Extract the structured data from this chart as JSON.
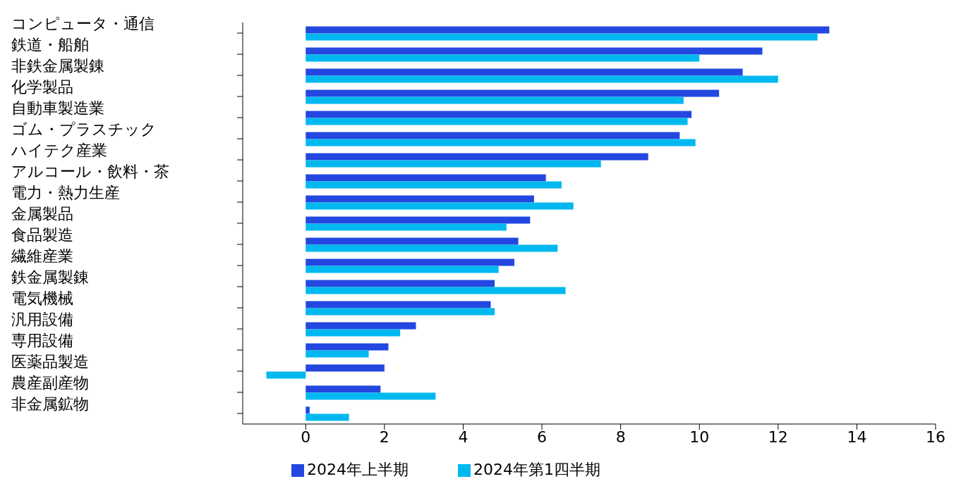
{
  "chart_data": {
    "type": "bar",
    "orientation": "horizontal",
    "categories": [
      "コンピュータ・通信",
      "鉄道・船舶",
      "非鉄金属製錬",
      "化学製品",
      "自動車製造業",
      "ゴム・プラスチック",
      "ハイテク産業",
      "アルコール・飲料・茶",
      "電力・熱力生産",
      "金属製品",
      "食品製造",
      "繊維産業",
      "鉄金属製錬",
      "電気機械",
      "汎用設備",
      "専用設備",
      "医薬品製造",
      "農産副産物",
      "非金属鉱物"
    ],
    "series": [
      {
        "name": "2024年上半期",
        "color": "#2347e0",
        "values": [
          13.3,
          11.6,
          11.1,
          10.5,
          9.8,
          9.5,
          8.7,
          6.1,
          5.8,
          5.7,
          5.4,
          5.3,
          4.8,
          4.7,
          2.8,
          2.1,
          2.0,
          1.9,
          0.1
        ]
      },
      {
        "name": "2024年第1四半期",
        "color": "#00b8f0",
        "values": [
          13.0,
          10.0,
          12.0,
          9.6,
          9.7,
          9.9,
          7.5,
          6.5,
          6.8,
          5.1,
          6.4,
          4.9,
          6.6,
          4.8,
          2.4,
          1.6,
          -1.0,
          3.3,
          1.1
        ]
      }
    ],
    "xlim": [
      -1.6,
      16
    ],
    "xticks": [
      0,
      2,
      4,
      6,
      8,
      10,
      12,
      14,
      16
    ],
    "grid": false,
    "legend": "bottom"
  }
}
